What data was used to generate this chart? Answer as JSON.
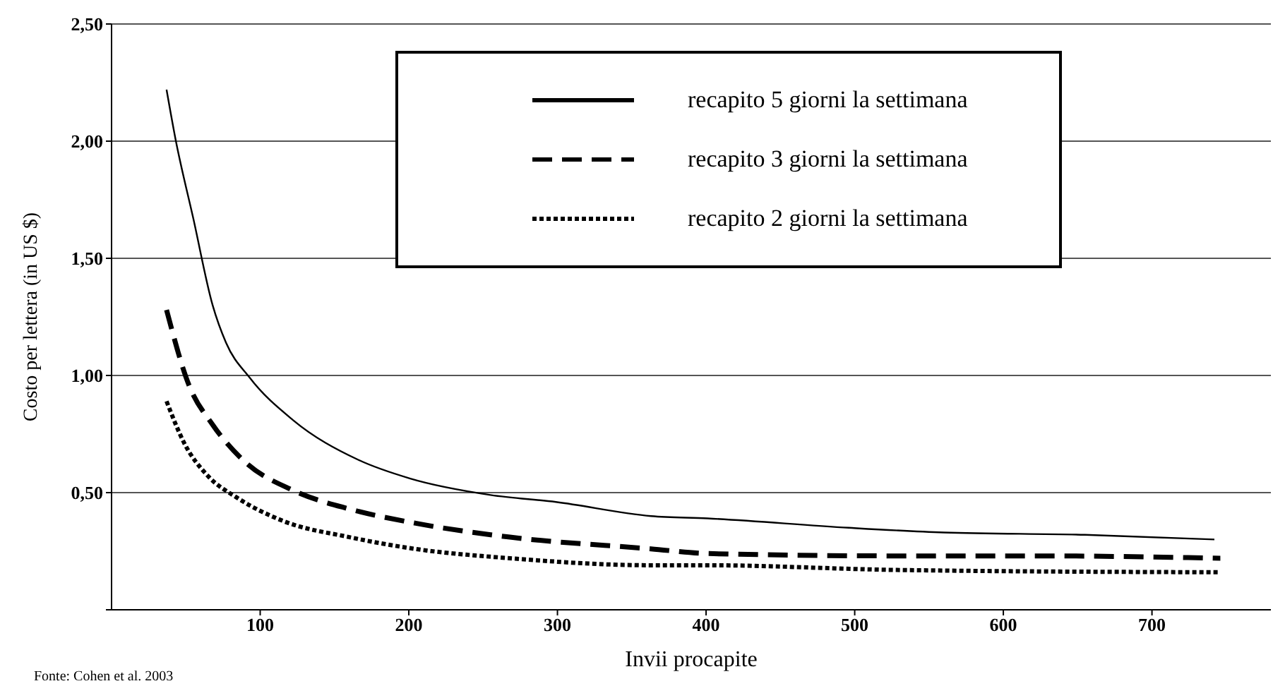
{
  "chart_data": {
    "type": "line",
    "xlabel": "Invii procapite",
    "ylabel": "Costo per lettera (in US $)",
    "annotations": [
      "Fonte: Cohen et al. 2003"
    ],
    "xlim": [
      0,
      780
    ],
    "xticks": [
      100,
      200,
      300,
      400,
      500,
      600,
      700
    ],
    "ylim": [
      0,
      2.5
    ],
    "yticks": [
      {
        "value": 0,
        "label": null
      },
      {
        "value": 0.5,
        "label": "0,50"
      },
      {
        "value": 1,
        "label": "1,00"
      },
      {
        "value": 1.5,
        "label": "1,50"
      },
      {
        "value": 2,
        "label": "2,00"
      },
      {
        "value": 2.5,
        "label": "2,50"
      }
    ],
    "grid": "y",
    "legend": "top right",
    "marker": "none",
    "series": [
      {
        "name": "recapito 5 giorni la settimana",
        "color": "#000000",
        "line_style": "solid",
        "x": [
          37,
          43,
          55,
          68,
          77,
          93,
          122,
          166,
          201,
          255,
          299,
          363,
          401,
          496,
          560,
          655,
          742
        ],
        "values": [
          2.22,
          2.01,
          1.67,
          1.3,
          1.14,
          0.99,
          0.81,
          0.64,
          0.56,
          0.49,
          0.46,
          0.4,
          0.39,
          0.35,
          0.33,
          0.32,
          0.3
        ]
      },
      {
        "name": "recapito 3 giorni la settimana",
        "color": "#000000",
        "line_style": "dashed",
        "x": [
          37,
          52,
          68,
          90,
          122,
          160,
          204,
          268,
          363,
          401,
          528,
          623,
          746
        ],
        "values": [
          1.28,
          0.96,
          0.79,
          0.63,
          0.51,
          0.43,
          0.37,
          0.31,
          0.26,
          0.24,
          0.23,
          0.23,
          0.22
        ]
      },
      {
        "name": "recapito 2 giorni la settimana",
        "color": "#000000",
        "line_style": "dotted",
        "x": [
          37,
          49,
          65,
          84,
          115,
          160,
          204,
          268,
          363,
          401,
          528,
          746
        ],
        "values": [
          0.89,
          0.71,
          0.57,
          0.48,
          0.38,
          0.31,
          0.26,
          0.22,
          0.19,
          0.19,
          0.17,
          0.16
        ]
      }
    ]
  }
}
